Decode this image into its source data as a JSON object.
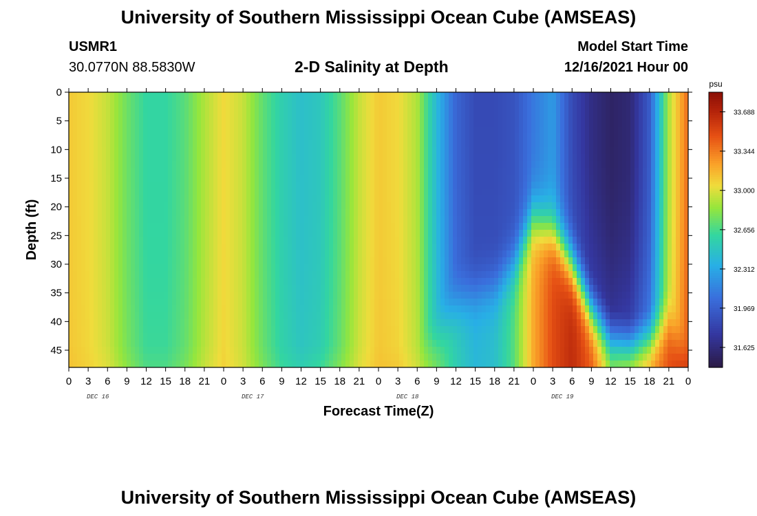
{
  "header": {
    "title": "University of Southern Mississippi Ocean Cube (AMSEAS)",
    "station": "USMR1",
    "coords": "30.0770N  88.5830W",
    "plot_title": "2-D Salinity at Depth",
    "model_start_label": "Model Start Time",
    "model_start_value": "12/16/2021 Hour 00"
  },
  "footer": {
    "title": "University of Southern Mississippi Ocean Cube (AMSEAS)"
  },
  "colors": {
    "low": "#2b1a45",
    "mid": "#33d6a0",
    "high": "#8a0f06"
  },
  "chart_data": {
    "type": "heatmap",
    "title": "2-D Salinity at Depth",
    "xlabel": "Forecast Time(Z)",
    "ylabel": "Depth (ft)",
    "x_ticks": [
      "0",
      "3",
      "6",
      "9",
      "12",
      "15",
      "18",
      "21",
      "0",
      "3",
      "6",
      "9",
      "12",
      "15",
      "18",
      "21",
      "0",
      "3",
      "6",
      "9",
      "12",
      "15",
      "18",
      "21",
      "0",
      "3",
      "6",
      "9",
      "12",
      "15",
      "18",
      "21",
      "0"
    ],
    "day_labels": [
      "DEC 16",
      "DEC 17",
      "DEC 18",
      "DEC 19"
    ],
    "y_ticks": [
      "0",
      "5",
      "10",
      "15",
      "20",
      "25",
      "30",
      "35",
      "40",
      "45"
    ],
    "xlim": [
      0,
      96
    ],
    "ylim": [
      0,
      48
    ],
    "colorbar": {
      "unit": "psu",
      "ticks": [
        "33.688",
        "33.344",
        "33.000",
        "32.656",
        "32.312",
        "31.969",
        "31.625"
      ],
      "range": [
        31.45,
        33.86
      ]
    },
    "profiles_x": [
      0,
      3,
      6,
      9,
      12,
      15,
      18,
      21,
      24,
      27,
      30,
      33,
      36,
      39,
      42,
      45,
      48,
      51,
      54,
      57,
      60,
      63,
      66,
      69,
      72,
      75,
      78,
      81,
      84,
      87,
      90,
      93,
      96
    ],
    "surface_salinity": [
      33.1,
      33.05,
      32.95,
      32.75,
      32.6,
      32.6,
      32.7,
      32.9,
      33.05,
      32.95,
      32.72,
      32.55,
      32.45,
      32.5,
      32.7,
      32.95,
      33.1,
      33.05,
      32.9,
      32.4,
      32.0,
      31.85,
      31.85,
      31.9,
      32.1,
      32.25,
      31.85,
      31.65,
      31.55,
      31.6,
      31.95,
      32.9,
      33.4
    ],
    "bottom_salinity": [
      33.15,
      33.1,
      33.05,
      32.9,
      32.75,
      32.75,
      32.85,
      33.0,
      33.1,
      33.0,
      32.85,
      32.7,
      32.65,
      32.75,
      32.9,
      33.05,
      33.15,
      33.15,
      33.05,
      32.8,
      32.55,
      32.4,
      32.45,
      32.7,
      33.2,
      33.5,
      33.65,
      33.45,
      32.95,
      33.1,
      33.3,
      33.5,
      33.7
    ],
    "transition_depth_ft": [
      48,
      48,
      48,
      48,
      48,
      48,
      48,
      48,
      48,
      48,
      48,
      48,
      48,
      48,
      48,
      48,
      48,
      48,
      48,
      43,
      37,
      35,
      34,
      30,
      22,
      24,
      30,
      38,
      43,
      44,
      43,
      40,
      48
    ]
  }
}
